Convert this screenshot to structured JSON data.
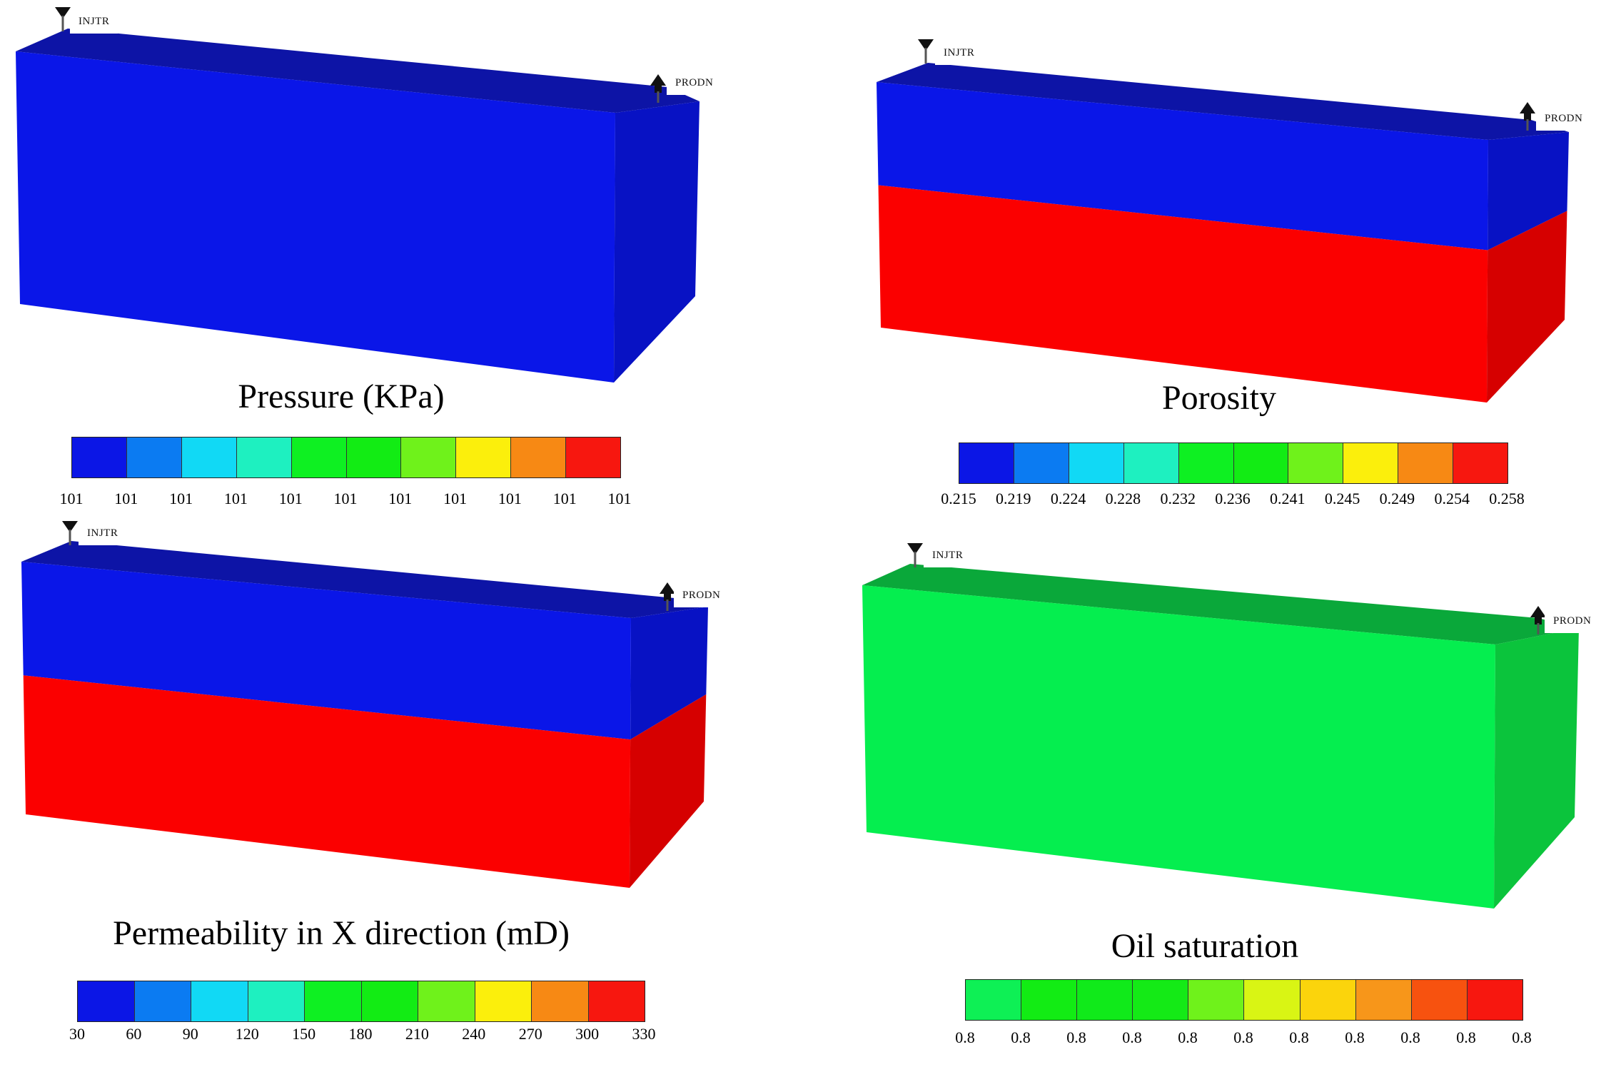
{
  "wells": {
    "injector": "INJTR",
    "producer": "PRODN"
  },
  "panels": [
    {
      "id": "pressure",
      "title": "Pressure (KPa)",
      "layers": "uniform",
      "face_colors": {
        "top": "#0d14a6",
        "front": "#0a16e8",
        "side": "#0812c4"
      },
      "colorbar_colors": [
        "#0b16e6",
        "#0b7bf2",
        "#11d9f5",
        "#1ef0c0",
        "#0ef022",
        "#12ec14",
        "#6ff21b",
        "#fbef0c",
        "#f78914",
        "#f7170f"
      ],
      "ticks": [
        "101",
        "101",
        "101",
        "101",
        "101",
        "101",
        "101",
        "101",
        "101",
        "101",
        "101"
      ]
    },
    {
      "id": "porosity",
      "title": "Porosity",
      "layers": "two",
      "face_colors": {
        "top": "#0d14a6",
        "front_upper": "#0a16e8",
        "front_lower": "#fb0000",
        "side_upper": "#0812c4",
        "side_lower": "#d60000"
      },
      "colorbar_colors": [
        "#0b16e6",
        "#0b7bf2",
        "#11d9f5",
        "#1ef0c0",
        "#0ef022",
        "#12ec14",
        "#6ff21b",
        "#fbef0c",
        "#f78914",
        "#f7170f"
      ],
      "ticks": [
        "0.215",
        "0.219",
        "0.224",
        "0.228",
        "0.232",
        "0.236",
        "0.241",
        "0.245",
        "0.249",
        "0.254",
        "0.258"
      ]
    },
    {
      "id": "permeability",
      "title": "Permeability in X direction (mD)",
      "layers": "two",
      "face_colors": {
        "top": "#0d14a6",
        "front_upper": "#0a16e8",
        "front_lower": "#fb0000",
        "side_upper": "#0812c4",
        "side_lower": "#d60000"
      },
      "colorbar_colors": [
        "#0b16e6",
        "#0b7bf2",
        "#11d9f5",
        "#1ef0c0",
        "#0ef022",
        "#12ec14",
        "#6ff21b",
        "#fbef0c",
        "#f78914",
        "#f7170f"
      ],
      "ticks": [
        "30",
        "60",
        "90",
        "120",
        "150",
        "180",
        "210",
        "240",
        "270",
        "300",
        "330"
      ]
    },
    {
      "id": "oil-saturation",
      "title": "Oil saturation",
      "layers": "uniform",
      "face_colors": {
        "top": "#0aa83a",
        "front": "#05ee4f",
        "side": "#0bc43c"
      },
      "colorbar_colors": [
        "#0ef055",
        "#12ec14",
        "#10ea1a",
        "#14ea16",
        "#6ff21b",
        "#d9f514",
        "#fbd40c",
        "#f7961a",
        "#f7520f",
        "#f7170f"
      ],
      "ticks": [
        "0.8",
        "0.8",
        "0.8",
        "0.8",
        "0.8",
        "0.8",
        "0.8",
        "0.8",
        "0.8",
        "0.8",
        "0.8"
      ]
    }
  ]
}
